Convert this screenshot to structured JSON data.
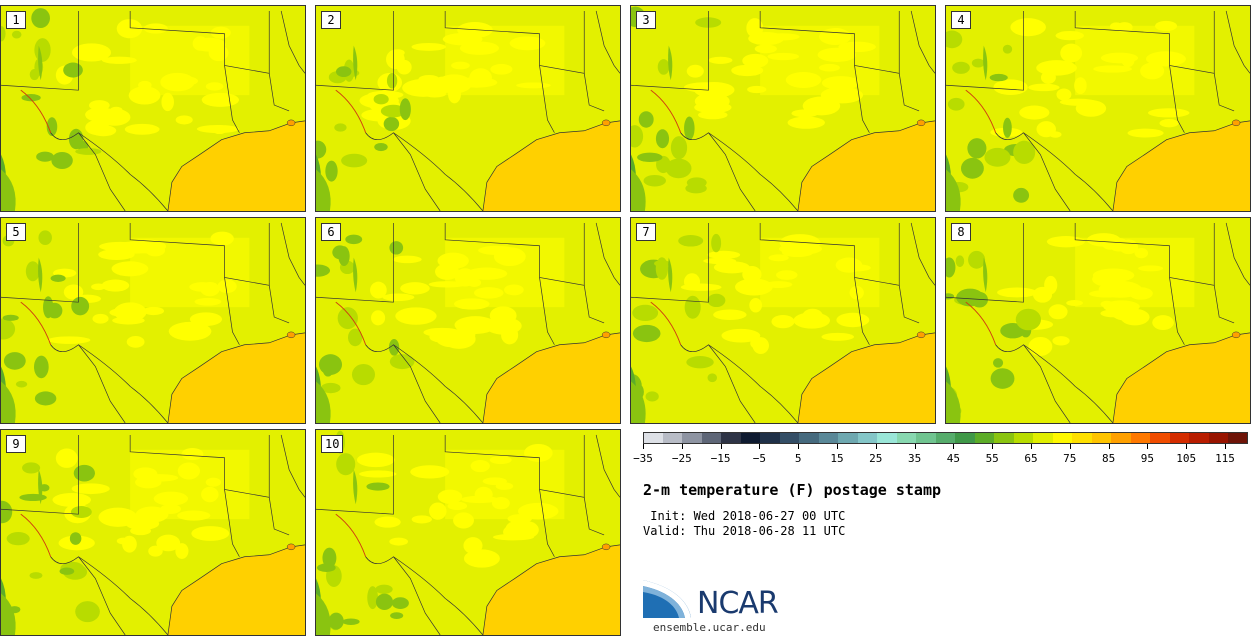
{
  "stamps": [
    {
      "label": "1"
    },
    {
      "label": "2"
    },
    {
      "label": "3"
    },
    {
      "label": "4"
    },
    {
      "label": "5"
    },
    {
      "label": "6"
    },
    {
      "label": "7"
    },
    {
      "label": "8"
    },
    {
      "label": "9"
    },
    {
      "label": "10"
    }
  ],
  "colorbar": {
    "colors": [
      "#dde0e6",
      "#b8bcc6",
      "#8e94a2",
      "#5e6677",
      "#2e3446",
      "#0e1a30",
      "#1f3048",
      "#344e66",
      "#466a7e",
      "#5a8898",
      "#6ea8b0",
      "#84c6c8",
      "#9ae6d8",
      "#88d8b0",
      "#70c490",
      "#56ac6c",
      "#3f9848",
      "#5cac28",
      "#8ac410",
      "#b8dc00",
      "#e0ee00",
      "#fff800",
      "#ffe000",
      "#ffc400",
      "#ffa000",
      "#ff7800",
      "#f04c00",
      "#d42c00",
      "#b81c00",
      "#981400",
      "#6e1408"
    ],
    "tick_labels": [
      "−35",
      "−25",
      "−15",
      "−5",
      "5",
      "15",
      "25",
      "35",
      "45",
      "55",
      "65",
      "75",
      "85",
      "95",
      "105",
      "115"
    ]
  },
  "title": "2-m temperature (F) postage stamp",
  "init": " Init: Wed 2018-06-27 00 UTC",
  "valid": "Valid: Thu 2018-06-28 11 UTC",
  "logo": {
    "text": "NCAR",
    "url": "ensemble.ucar.edu"
  },
  "map_colors": {
    "land": "#e3f000",
    "warm": "#ffff00",
    "cool": "#b8dc00",
    "cooler": "#8ac410",
    "cold": "#5cac28",
    "gulf": "#ffd000",
    "border": "#333333"
  }
}
